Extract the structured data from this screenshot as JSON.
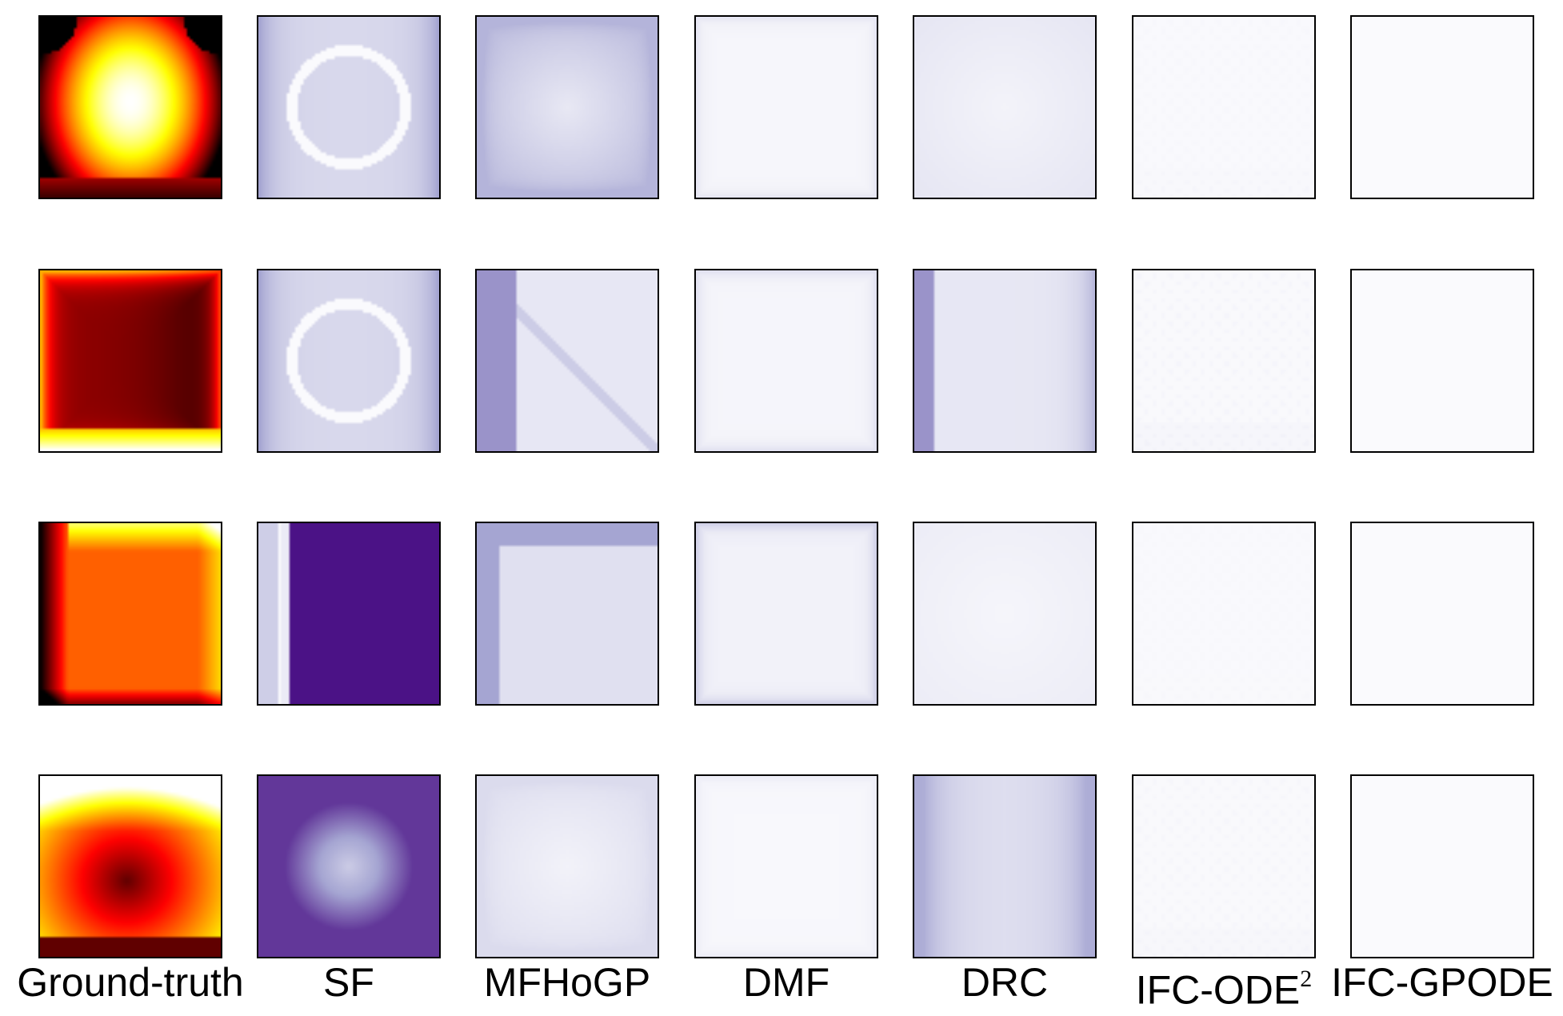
{
  "chart_data": {
    "type": "heatmap",
    "layout": "grid",
    "grid": {
      "rows": 4,
      "cols": 7
    },
    "columns": [
      {
        "label": "Ground-truth",
        "superscript": "",
        "colormap": "hot"
      },
      {
        "label": "SF",
        "superscript": "",
        "colormap": "purples"
      },
      {
        "label": "MFHoGP",
        "superscript": "",
        "colormap": "purples"
      },
      {
        "label": "DMF",
        "superscript": "",
        "colormap": "purples"
      },
      {
        "label": "DRC",
        "superscript": "",
        "colormap": "purples"
      },
      {
        "label": "IFC-ODE",
        "superscript": "2",
        "colormap": "purples"
      },
      {
        "label": "IFC-GPODE",
        "superscript": "",
        "colormap": "purples"
      }
    ],
    "rows": [
      {
        "ground_truth_pattern": "bright yellow-white disk in upper center, dark corners and dark bottom band",
        "relative_error_level": {
          "SF": 0.55,
          "MFHoGP": 0.45,
          "DMF": 0.12,
          "DRC": 0.15,
          "IFC-ODE2": 0.03,
          "IFC-GPODE": 0.0
        }
      },
      {
        "ground_truth_pattern": "dark red interior with black right side, yellow bottom band and orange edges",
        "relative_error_level": {
          "SF": 0.55,
          "MFHoGP": 0.6,
          "DMF": 0.15,
          "DRC": 0.6,
          "IFC-ODE2": 0.05,
          "IFC-GPODE": 0.0
        }
      },
      {
        "ground_truth_pattern": "orange interior, yellow top and right edges, black left edge",
        "relative_error_level": {
          "SF": 0.95,
          "MFHoGP": 0.55,
          "DMF": 0.25,
          "DRC": 0.1,
          "IFC-ODE2": 0.02,
          "IFC-GPODE": 0.0
        }
      },
      {
        "ground_truth_pattern": "dark red dome centered low, yellow upper edges, dark bottom band",
        "relative_error_level": {
          "SF": 0.85,
          "MFHoGP": 0.2,
          "DMF": 0.08,
          "DRC": 0.5,
          "IFC-ODE2": 0.04,
          "IFC-GPODE": 0.0
        }
      }
    ],
    "title": "",
    "xlabel": "",
    "ylabel": "",
    "colorbar": false,
    "axis_ticks": false
  }
}
